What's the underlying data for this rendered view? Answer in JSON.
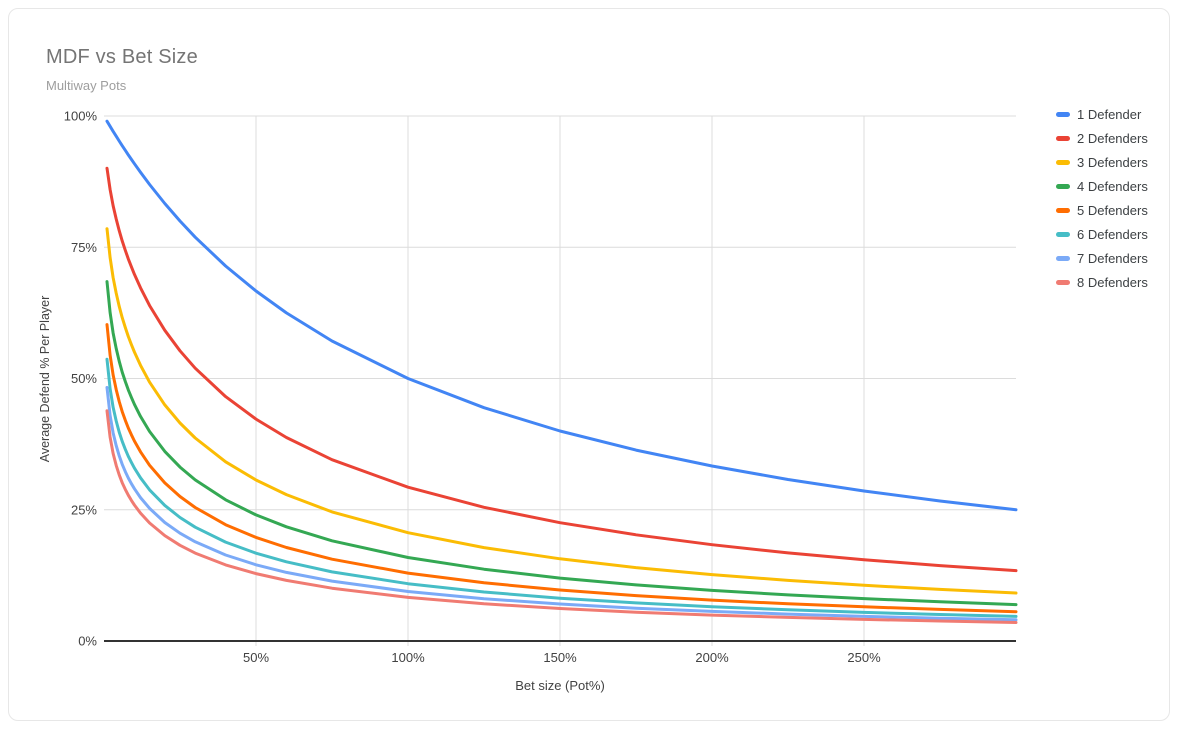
{
  "chart_data": {
    "type": "line",
    "title": "MDF vs Bet Size",
    "subtitle": "Multiway Pots",
    "xlabel": "Bet size (Pot%)",
    "ylabel": "Average Defend % Per Player",
    "xlim": [
      0,
      300
    ],
    "ylim": [
      0,
      100
    ],
    "grid": true,
    "legend_position": "right",
    "x_ticks": {
      "values": [
        50,
        100,
        150,
        200,
        250
      ],
      "labels": [
        "50%",
        "100%",
        "150%",
        "200%",
        "250%"
      ]
    },
    "y_ticks": {
      "values": [
        0,
        25,
        50,
        75,
        100
      ],
      "labels": [
        "0%",
        "25%",
        "50%",
        "75%",
        "100%"
      ]
    },
    "x": [
      1,
      2,
      3,
      4,
      5,
      6,
      7,
      8,
      9,
      10,
      12,
      15,
      20,
      25,
      30,
      40,
      50,
      60,
      75,
      100,
      125,
      150,
      175,
      200,
      225,
      250,
      275,
      300
    ],
    "series": [
      {
        "name": "1 Defender",
        "color": "#4285F4",
        "values": [
          99.01,
          98.04,
          97.09,
          96.15,
          95.24,
          94.34,
          93.46,
          92.59,
          91.74,
          90.91,
          89.29,
          86.96,
          83.33,
          80.0,
          76.92,
          71.43,
          66.67,
          62.5,
          57.14,
          50.0,
          44.44,
          40.0,
          36.36,
          33.33,
          30.77,
          28.57,
          26.67,
          25.0
        ]
      },
      {
        "name": "2 Defenders",
        "color": "#EA4335",
        "values": [
          90.05,
          86.0,
          82.93,
          80.39,
          78.18,
          76.21,
          74.42,
          72.78,
          71.27,
          69.85,
          67.27,
          63.88,
          59.18,
          55.28,
          51.96,
          46.55,
          42.26,
          38.76,
          34.53,
          29.29,
          25.46,
          22.54,
          20.23,
          18.35,
          16.79,
          15.48,
          14.37,
          13.4
        ]
      },
      {
        "name": "3 Defenders",
        "color": "#FBBC04",
        "values": [
          78.53,
          73.04,
          69.24,
          66.25,
          63.76,
          61.6,
          59.71,
          58.0,
          56.46,
          55.04,
          52.51,
          49.29,
          44.97,
          41.52,
          38.66,
          34.14,
          30.66,
          27.89,
          24.6,
          20.63,
          17.79,
          15.66,
          13.99,
          12.64,
          11.54,
          10.61,
          9.82,
          9.14
        ]
      },
      {
        "name": "4 Defenders",
        "color": "#34A853",
        "values": [
          68.46,
          62.58,
          58.69,
          55.71,
          53.29,
          51.22,
          49.43,
          47.83,
          46.4,
          45.09,
          42.79,
          39.9,
          36.11,
          33.13,
          30.69,
          26.89,
          24.02,
          21.75,
          19.09,
          15.91,
          13.67,
          11.99,
          10.69,
          9.64,
          8.78,
          8.07,
          7.46,
          6.94
        ]
      },
      {
        "name": "5 Defenders",
        "color": "#FF6D01",
        "values": [
          60.27,
          54.45,
          50.7,
          47.88,
          45.61,
          43.69,
          42.04,
          40.58,
          39.28,
          38.1,
          36.03,
          33.46,
          30.12,
          27.52,
          25.42,
          22.16,
          19.73,
          17.81,
          15.59,
          12.94,
          11.09,
          9.71,
          8.64,
          7.79,
          7.09,
          6.51,
          6.01,
          5.59
        ]
      },
      {
        "name": "6 Defenders",
        "color": "#46BDC6",
        "values": [
          53.66,
          48.07,
          44.53,
          41.9,
          39.8,
          38.04,
          36.52,
          35.19,
          34.01,
          32.94,
          31.08,
          28.79,
          25.82,
          23.53,
          21.68,
          18.84,
          16.73,
          15.08,
          13.17,
          10.91,
          9.33,
          8.16,
          7.26,
          6.53,
          5.95,
          5.45,
          5.04,
          4.68
        ]
      },
      {
        "name": "7 Defenders",
        "color": "#7BAAF7",
        "values": [
          48.28,
          42.98,
          39.66,
          37.22,
          35.27,
          33.65,
          32.26,
          31.05,
          29.97,
          29.01,
          27.32,
          25.25,
          22.58,
          20.54,
          18.9,
          16.39,
          14.52,
          13.07,
          11.4,
          9.43,
          8.05,
          7.04,
          6.25,
          5.63,
          5.12,
          4.69,
          4.33,
          4.03
        ]
      },
      {
        "name": "8 Defenders",
        "color": "#F07B72",
        "values": [
          43.84,
          38.83,
          35.73,
          33.45,
          31.65,
          30.16,
          28.88,
          27.77,
          26.79,
          25.9,
          24.36,
          22.48,
          20.07,
          18.22,
          16.75,
          14.5,
          12.83,
          11.54,
          10.05,
          8.3,
          7.08,
          6.19,
          5.49,
          4.94,
          4.49,
          4.12,
          3.8,
          3.53
        ]
      }
    ],
    "colors": {
      "grid": "#dcdcdc",
      "axis": "#333333",
      "tick_label": "#424242",
      "title": "#757575",
      "subtitle": "#9e9e9e",
      "card_border": "#e7e7e7",
      "background": "#ffffff"
    }
  }
}
